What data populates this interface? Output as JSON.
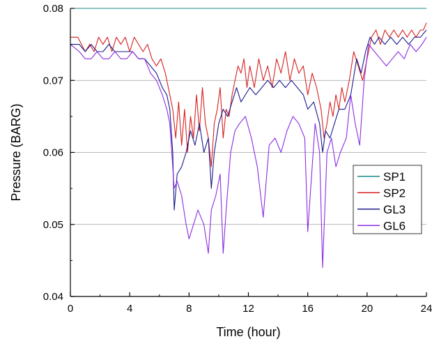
{
  "chart_data": {
    "type": "line",
    "title": "",
    "xlabel": "Time (hour)",
    "ylabel": "Pressure (BARG)",
    "xlim": [
      0,
      24
    ],
    "ylim": [
      0.04,
      0.08
    ],
    "x_ticks": [
      0,
      4,
      8,
      12,
      16,
      20,
      24
    ],
    "x_tick_labels": [
      "0",
      "4",
      "8",
      "12",
      "16",
      "20",
      "24"
    ],
    "y_ticks": [
      0.04,
      0.05,
      0.06,
      0.07,
      0.08
    ],
    "y_tick_labels": [
      "0.04",
      "0.05",
      "0.06",
      "0.07",
      "0.08"
    ],
    "grid": "horizontal",
    "legend_position": "right",
    "series": [
      {
        "name": "SP1",
        "color": "#1a8a8a",
        "x": [
          0,
          24
        ],
        "y": [
          0.08,
          0.08
        ]
      },
      {
        "name": "SP2",
        "color": "#d62020",
        "x": [
          0,
          0.5,
          1.0,
          1.3,
          1.6,
          1.9,
          2.2,
          2.5,
          2.8,
          3.1,
          3.4,
          3.7,
          4.0,
          4.3,
          4.6,
          4.9,
          5.2,
          5.5,
          5.8,
          6.1,
          6.4,
          6.7,
          6.9,
          7.1,
          7.3,
          7.5,
          7.7,
          7.9,
          8.1,
          8.3,
          8.5,
          8.7,
          8.9,
          9.1,
          9.3,
          9.5,
          9.7,
          9.9,
          10.1,
          10.3,
          10.5,
          10.7,
          10.9,
          11.1,
          11.3,
          11.5,
          11.7,
          11.9,
          12.1,
          12.4,
          12.7,
          13.0,
          13.3,
          13.6,
          13.9,
          14.2,
          14.5,
          14.8,
          15.1,
          15.4,
          15.7,
          16.0,
          16.3,
          16.6,
          16.9,
          17.1,
          17.3,
          17.5,
          17.7,
          17.9,
          18.1,
          18.3,
          18.5,
          18.8,
          19.1,
          19.4,
          19.7,
          20.0,
          20.3,
          20.6,
          20.9,
          21.2,
          21.5,
          21.8,
          22.1,
          22.4,
          22.7,
          23.0,
          23.3,
          23.6,
          23.8,
          24.0
        ],
        "y": [
          0.076,
          0.076,
          0.074,
          0.075,
          0.074,
          0.076,
          0.075,
          0.076,
          0.074,
          0.076,
          0.075,
          0.076,
          0.074,
          0.076,
          0.075,
          0.074,
          0.075,
          0.073,
          0.072,
          0.073,
          0.071,
          0.068,
          0.066,
          0.062,
          0.067,
          0.061,
          0.066,
          0.06,
          0.065,
          0.062,
          0.068,
          0.063,
          0.069,
          0.064,
          0.062,
          0.058,
          0.064,
          0.066,
          0.069,
          0.062,
          0.066,
          0.065,
          0.068,
          0.07,
          0.072,
          0.071,
          0.073,
          0.069,
          0.072,
          0.069,
          0.073,
          0.07,
          0.072,
          0.069,
          0.073,
          0.071,
          0.074,
          0.07,
          0.073,
          0.071,
          0.072,
          0.068,
          0.071,
          0.069,
          0.066,
          0.062,
          0.064,
          0.067,
          0.065,
          0.068,
          0.066,
          0.069,
          0.067,
          0.07,
          0.074,
          0.072,
          0.07,
          0.073,
          0.076,
          0.077,
          0.075,
          0.077,
          0.076,
          0.077,
          0.076,
          0.077,
          0.076,
          0.077,
          0.076,
          0.077,
          0.077,
          0.078
        ]
      },
      {
        "name": "GL3",
        "color": "#1a1a8c",
        "x": [
          0,
          0.6,
          1.0,
          1.4,
          1.8,
          2.2,
          2.6,
          3.0,
          3.4,
          3.8,
          4.2,
          4.6,
          5.0,
          5.4,
          5.8,
          6.2,
          6.5,
          6.7,
          6.9,
          7.0,
          7.2,
          7.5,
          7.8,
          8.1,
          8.4,
          8.7,
          9.0,
          9.3,
          9.5,
          9.7,
          10.0,
          10.3,
          10.6,
          10.9,
          11.2,
          11.5,
          11.8,
          12.1,
          12.5,
          12.9,
          13.3,
          13.7,
          14.1,
          14.5,
          14.9,
          15.3,
          15.7,
          16.0,
          16.4,
          16.8,
          17.0,
          17.2,
          17.5,
          17.8,
          18.1,
          18.5,
          18.9,
          19.3,
          19.6,
          19.9,
          20.2,
          20.5,
          20.8,
          21.2,
          21.6,
          22.0,
          22.4,
          22.8,
          23.2,
          23.6,
          24.0
        ],
        "y": [
          0.075,
          0.075,
          0.074,
          0.075,
          0.074,
          0.074,
          0.075,
          0.074,
          0.074,
          0.074,
          0.074,
          0.073,
          0.073,
          0.072,
          0.071,
          0.069,
          0.068,
          0.066,
          0.06,
          0.052,
          0.057,
          0.058,
          0.06,
          0.063,
          0.061,
          0.064,
          0.06,
          0.062,
          0.055,
          0.06,
          0.064,
          0.066,
          0.065,
          0.067,
          0.069,
          0.067,
          0.068,
          0.069,
          0.068,
          0.069,
          0.07,
          0.069,
          0.07,
          0.069,
          0.07,
          0.069,
          0.068,
          0.066,
          0.067,
          0.064,
          0.06,
          0.063,
          0.062,
          0.064,
          0.066,
          0.066,
          0.068,
          0.073,
          0.071,
          0.074,
          0.076,
          0.075,
          0.076,
          0.075,
          0.076,
          0.075,
          0.076,
          0.075,
          0.076,
          0.076,
          0.077
        ]
      },
      {
        "name": "GL6",
        "color": "#8a2be2",
        "x": [
          0,
          0.6,
          1.0,
          1.4,
          1.8,
          2.2,
          2.6,
          3.0,
          3.4,
          3.8,
          4.2,
          4.6,
          5.0,
          5.4,
          5.8,
          6.2,
          6.5,
          6.7,
          6.9,
          7.0,
          7.2,
          7.5,
          7.8,
          8.0,
          8.3,
          8.6,
          9.0,
          9.3,
          9.5,
          9.8,
          10.1,
          10.3,
          10.5,
          10.8,
          11.1,
          11.4,
          11.8,
          12.2,
          12.6,
          13.0,
          13.4,
          13.8,
          14.2,
          14.6,
          15.0,
          15.4,
          15.8,
          16.0,
          16.2,
          16.5,
          16.8,
          17.0,
          17.3,
          17.6,
          17.9,
          18.2,
          18.6,
          18.9,
          19.2,
          19.5,
          19.8,
          20.1,
          20.5,
          20.9,
          21.3,
          21.7,
          22.1,
          22.5,
          22.9,
          23.3,
          23.7,
          24.0
        ],
        "y": [
          0.075,
          0.074,
          0.073,
          0.073,
          0.074,
          0.073,
          0.073,
          0.074,
          0.073,
          0.073,
          0.074,
          0.073,
          0.073,
          0.071,
          0.07,
          0.068,
          0.066,
          0.064,
          0.058,
          0.055,
          0.056,
          0.054,
          0.05,
          0.048,
          0.05,
          0.052,
          0.05,
          0.046,
          0.052,
          0.054,
          0.057,
          0.046,
          0.052,
          0.06,
          0.063,
          0.064,
          0.065,
          0.062,
          0.058,
          0.051,
          0.061,
          0.062,
          0.06,
          0.063,
          0.065,
          0.064,
          0.062,
          0.049,
          0.055,
          0.064,
          0.06,
          0.044,
          0.06,
          0.062,
          0.058,
          0.06,
          0.062,
          0.068,
          0.064,
          0.061,
          0.07,
          0.075,
          0.074,
          0.073,
          0.072,
          0.073,
          0.074,
          0.073,
          0.075,
          0.074,
          0.075,
          0.076
        ]
      }
    ]
  }
}
